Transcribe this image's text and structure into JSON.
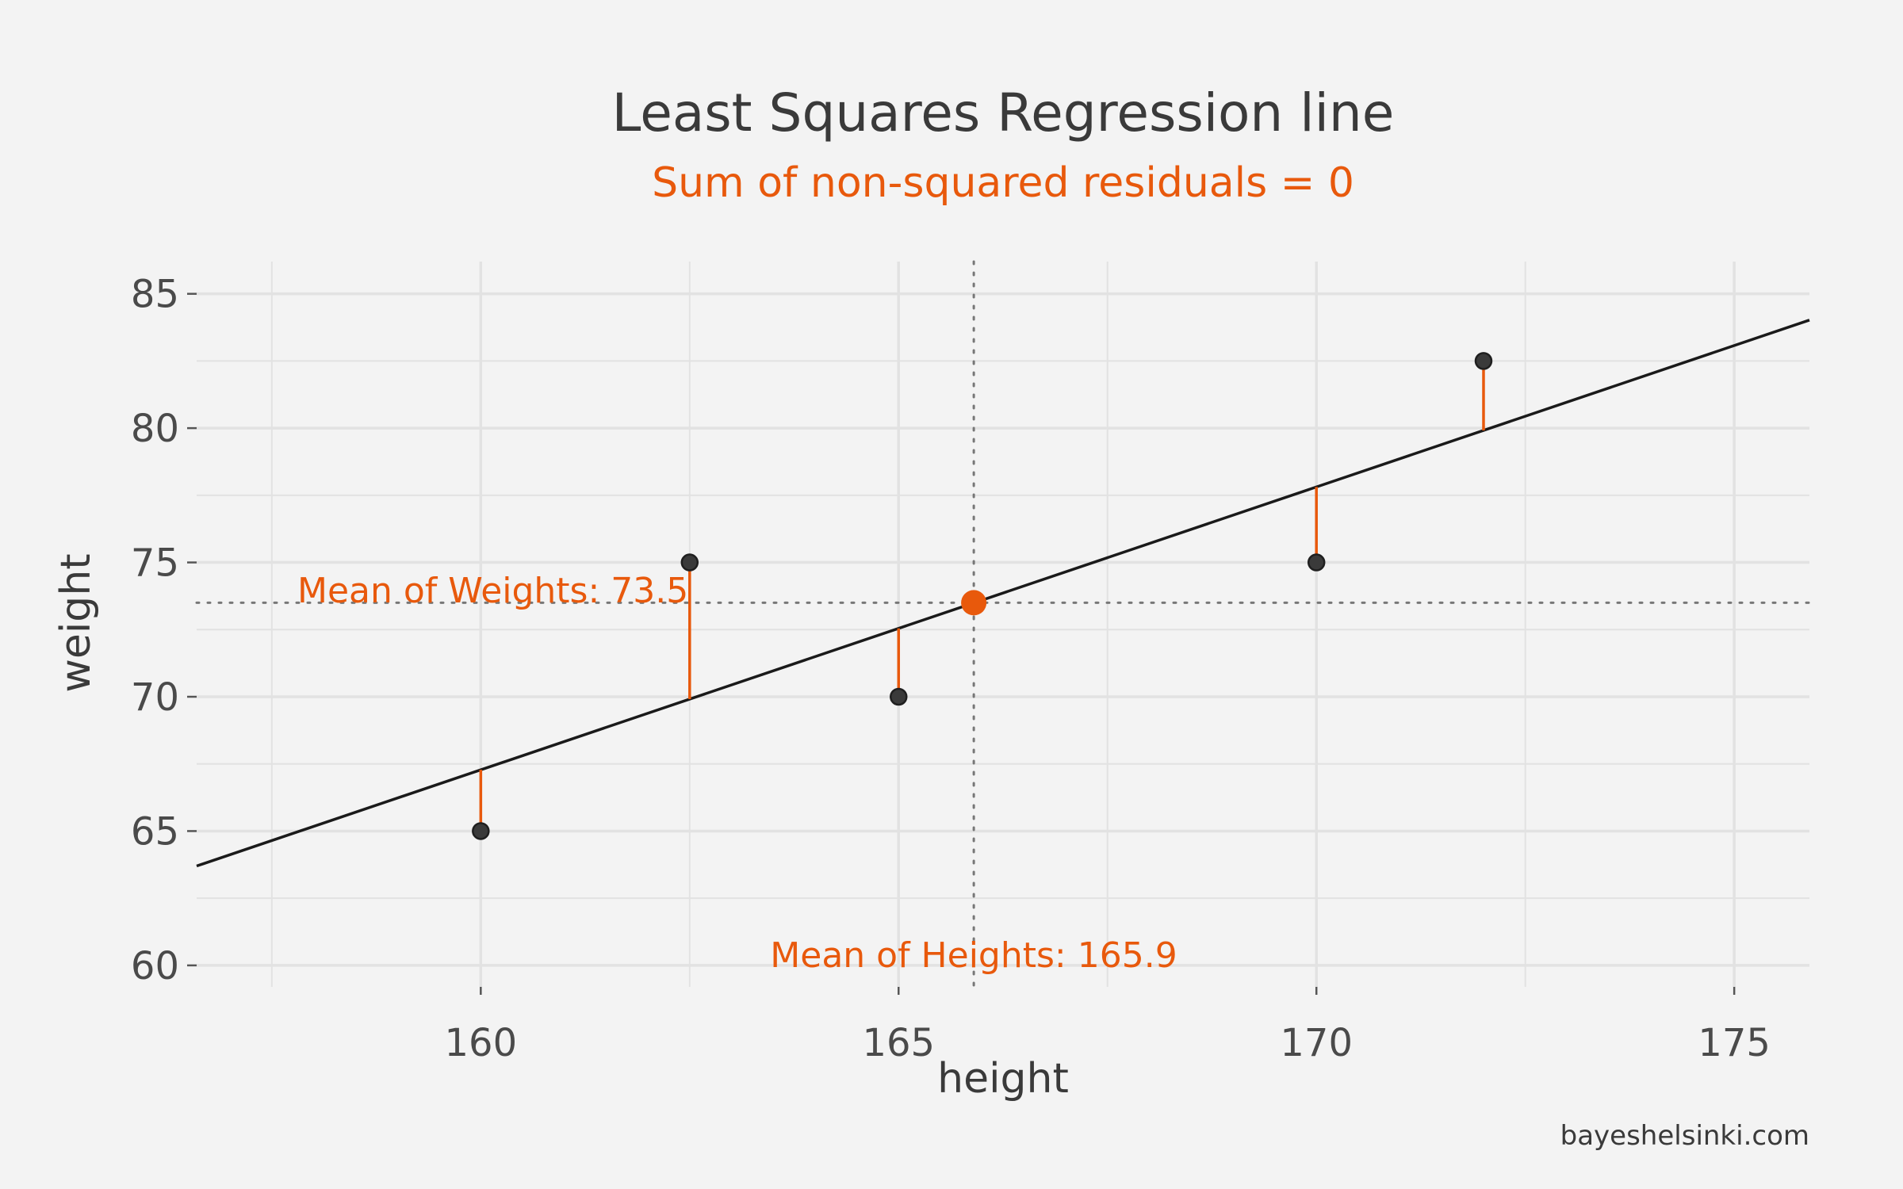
{
  "chart_data": {
    "type": "scatter",
    "title": "Least Squares Regression line",
    "subtitle": "Sum of non-squared residuals = 0",
    "xlabel": "height",
    "ylabel": "weight",
    "xlim": [
      156.6,
      175.9
    ],
    "ylim": [
      59.2,
      86.2
    ],
    "x_ticks": [
      160,
      165,
      170,
      175
    ],
    "x_tick_labels": [
      "160",
      "165",
      "170",
      "175"
    ],
    "y_ticks": [
      60,
      65,
      70,
      75,
      80,
      85
    ],
    "y_tick_labels": [
      "60",
      "65",
      "70",
      "75",
      "80",
      "85"
    ],
    "grid": true,
    "points": [
      {
        "x": 160,
        "y": 65
      },
      {
        "x": 162.5,
        "y": 75
      },
      {
        "x": 165,
        "y": 70
      },
      {
        "x": 170,
        "y": 75
      },
      {
        "x": 172,
        "y": 82.5
      }
    ],
    "regression_line": {
      "intercept": -101.2,
      "slope": 1.053
    },
    "mean_point": {
      "x": 165.9,
      "y": 73.5
    },
    "annotations": {
      "mean_y_label": "Mean of Weights: 73.5",
      "mean_x_label": "Mean of Heights: 165.9"
    },
    "caption": "bayeshelsinki.com",
    "colors": {
      "accent": "#e8590c",
      "point": "#3a3a3a",
      "line": "#1a1a1a",
      "grid": "#e2e2e2",
      "background": "#f3f3f3"
    }
  }
}
